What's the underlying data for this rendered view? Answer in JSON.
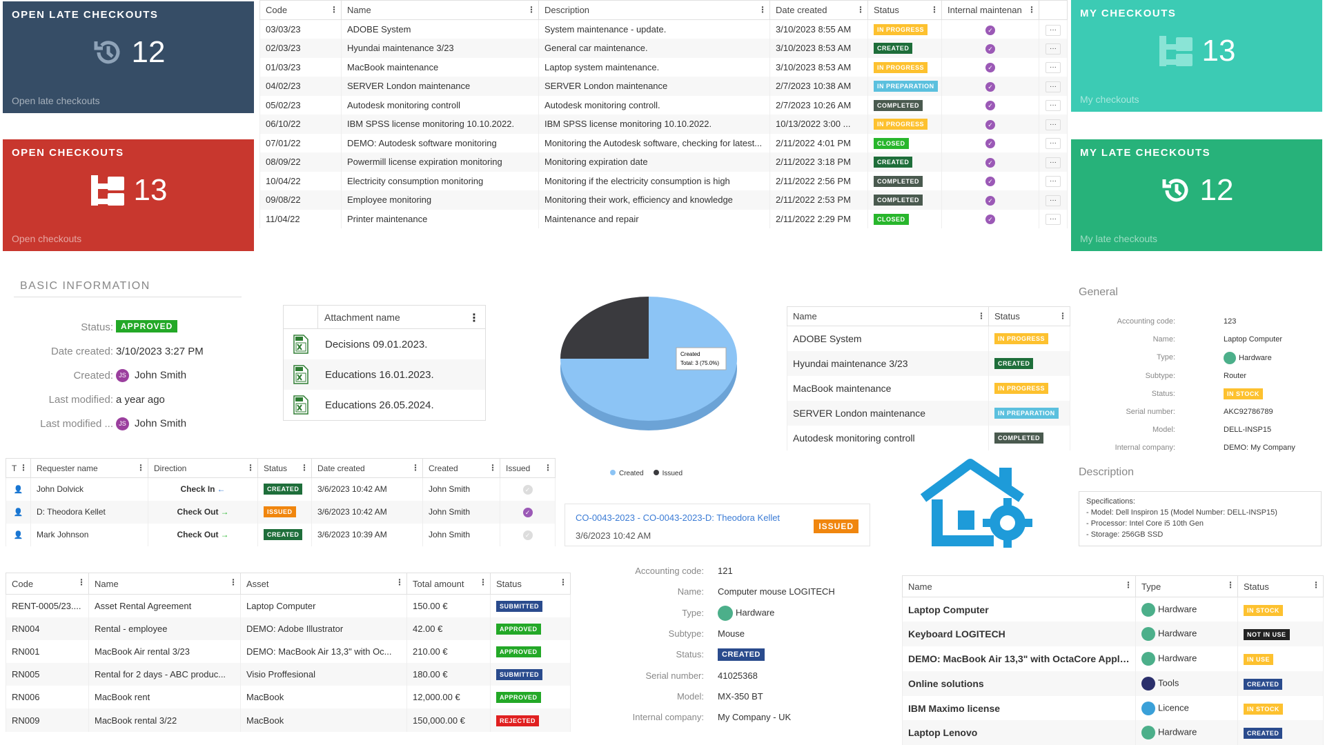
{
  "tiles": {
    "open_late": {
      "title": "OPEN LATE CHECKOUTS",
      "count": "12",
      "footer": "Open late checkouts",
      "color": "#364d66",
      "icon": "history-icon"
    },
    "open": {
      "title": "OPEN CHECKOUTS",
      "count": "13",
      "footer": "Open checkouts",
      "color": "#c8372e",
      "icon": "checkout-tree-icon"
    },
    "my": {
      "title": "MY CHECKOUTS",
      "count": "13",
      "footer": "My checkouts",
      "color": "#3ccbb4",
      "icon": "checkout-tree-icon"
    },
    "my_late": {
      "title": "MY LATE CHECKOUTS",
      "count": "12",
      "footer": "My late checkouts",
      "color": "#27b27a",
      "icon": "history-icon"
    }
  },
  "main_table": {
    "headers": [
      "Code",
      "Name",
      "Description",
      "Date created",
      "Status",
      "Internal maintenan"
    ],
    "rows": [
      {
        "code": "03/03/23",
        "name": "ADOBE System",
        "desc": "System maintenance - update.",
        "date": "3/10/2023 8:55 AM",
        "status": "IN PROGRESS",
        "cls": "b-prog"
      },
      {
        "code": "02/03/23",
        "name": "Hyundai maintenance 3/23",
        "desc": "General car maintenance.",
        "date": "3/10/2023 8:53 AM",
        "status": "CREATED",
        "cls": "b-created"
      },
      {
        "code": "01/03/23",
        "name": "MacBook maintenance",
        "desc": "Laptop system maintenance.",
        "date": "3/10/2023 8:53 AM",
        "status": "IN PROGRESS",
        "cls": "b-prog"
      },
      {
        "code": "04/02/23",
        "name": "SERVER London maintenance",
        "desc": "SERVER London maintenance",
        "date": "2/7/2023 10:38 AM",
        "status": "IN PREPARATION",
        "cls": "b-prep"
      },
      {
        "code": "05/02/23",
        "name": "Autodesk monitoring controll",
        "desc": "Autodesk monitoring controll.",
        "date": "2/7/2023 10:26 AM",
        "status": "COMPLETED",
        "cls": "b-completed"
      },
      {
        "code": "06/10/22",
        "name": "IBM SPSS license monitoring 10.10.2022.",
        "desc": "IBM SPSS license monitoring 10.10.2022.",
        "date": "10/13/2022 3:00 ...",
        "status": "IN PROGRESS",
        "cls": "b-prog"
      },
      {
        "code": "07/01/22",
        "name": "DEMO: Autodesk software monitoring",
        "desc": "Monitoring the Autodesk software, checking for latest...",
        "date": "2/11/2022 4:01 PM",
        "status": "CLOSED",
        "cls": "b-closed"
      },
      {
        "code": "08/09/22",
        "name": "Powermill license expiration monitoring",
        "desc": "Monitoring expiration date",
        "date": "2/11/2022 3:18 PM",
        "status": "CREATED",
        "cls": "b-created"
      },
      {
        "code": "10/04/22",
        "name": "Electricity consumption monitoring",
        "desc": "Monitoring if the electricity consumption is high",
        "date": "2/11/2022 2:56 PM",
        "status": "COMPLETED",
        "cls": "b-completed"
      },
      {
        "code": "09/08/22",
        "name": "Employee monitoring",
        "desc": "Monitoring their work, efficiency and knowledge",
        "date": "2/11/2022 2:53 PM",
        "status": "COMPLETED",
        "cls": "b-completed"
      },
      {
        "code": "11/04/22",
        "name": "Printer maintenance",
        "desc": "Maintenance and repair",
        "date": "2/11/2022 2:29 PM",
        "status": "CLOSED",
        "cls": "b-closed"
      }
    ],
    "more": "···"
  },
  "basic": {
    "title": "BASIC INFORMATION",
    "status_label": "Status:",
    "status": "APPROVED",
    "date_label": "Date created:",
    "date": "3/10/2023 3:27 PM",
    "created_label": "Created:",
    "created": "John Smith",
    "initials": "JS",
    "lastmod_label": "Last modified:",
    "lastmod": "a year ago",
    "lastmodby_label": "Last modified ...",
    "lastmodby": "John Smith"
  },
  "attachments": {
    "header": "Attachment name",
    "rows": [
      "Decisions 09.01.2023.",
      "Educations 16.01.2023.",
      "Educations 26.05.2024."
    ]
  },
  "chart_data": {
    "type": "pie",
    "categories": [
      "Created",
      "Issued"
    ],
    "values": [
      3,
      1
    ],
    "colors": [
      "#8cc4f5",
      "#3a3a3e"
    ],
    "tooltip": "Created",
    "tooltip_value": "Total: 3 (75.0%)"
  },
  "small_status": {
    "headers": [
      "Name",
      "Status"
    ],
    "rows": [
      {
        "name": "ADOBE System",
        "status": "IN PROGRESS",
        "cls": "b-prog"
      },
      {
        "name": "Hyundai maintenance 3/23",
        "status": "CREATED",
        "cls": "b-created"
      },
      {
        "name": "MacBook maintenance",
        "status": "IN PROGRESS",
        "cls": "b-prog"
      },
      {
        "name": "SERVER London maintenance",
        "status": "IN PREPARATION",
        "cls": "b-prep"
      },
      {
        "name": "Autodesk monitoring controll",
        "status": "COMPLETED",
        "cls": "b-completed"
      }
    ]
  },
  "general": {
    "title": "General",
    "fields": [
      {
        "k": "Accounting code:",
        "v": "123"
      },
      {
        "k": "Name:",
        "v": "Laptop Computer"
      },
      {
        "k": "Type:",
        "v": "Hardware"
      },
      {
        "k": "Subtype:",
        "v": "Router"
      },
      {
        "k": "Status:",
        "v": "IN STOCK"
      },
      {
        "k": "Serial number:",
        "v": "AKC92786789"
      },
      {
        "k": "Model:",
        "v": "DELL-INSP15"
      },
      {
        "k": "Internal company:",
        "v": "DEMO: My Company"
      }
    ],
    "desc_title": "Description",
    "desc": [
      "Specifications:",
      "- Model: Dell Inspiron 15 (Model Number: DELL-INSP15)",
      "- Processor: Intel Core i5 10th Gen",
      "- Storage: 256GB SSD"
    ]
  },
  "requests": {
    "headers": [
      "T",
      "Requester name",
      "Direction",
      "Status",
      "Date created",
      "Created",
      "Issued"
    ],
    "rows": [
      {
        "name": "John Dolvick",
        "dir": "Check In",
        "arrow": "←",
        "status": "CREATED",
        "cls": "b-created",
        "date": "3/6/2023 10:42 AM",
        "by": "John Smith",
        "issued": false
      },
      {
        "name": "D: Theodora Kellet",
        "dir": "Check Out",
        "arrow": "→",
        "status": "ISSUED",
        "cls": "b-issued",
        "date": "3/6/2023 10:42 AM",
        "by": "John Smith",
        "issued": true
      },
      {
        "name": "Mark Johnson",
        "dir": "Check Out",
        "arrow": "→",
        "status": "CREATED",
        "cls": "b-created",
        "date": "3/6/2023 10:39 AM",
        "by": "John Smith",
        "issued": false
      }
    ]
  },
  "legend": {
    "created": "Created",
    "issued": "Issued"
  },
  "checkout_card": {
    "code": "CO-0043-2023",
    "title": "CO-0043-2023-D: Theodora Kellet",
    "date": "3/6/2023 10:42 AM",
    "status": "ISSUED",
    "sep": " - "
  },
  "rentals": {
    "headers": [
      "Code",
      "Name",
      "Asset",
      "Total amount",
      "Status"
    ],
    "rows": [
      {
        "code": "RENT-0005/23....",
        "name": "Asset Rental Agreement",
        "asset": "Laptop Computer",
        "amount": "150.00 €",
        "status": "SUBMITTED",
        "cls": "b-submitted"
      },
      {
        "code": "RN004",
        "name": "Rental - employee",
        "asset": "DEMO: Adobe Illustrator",
        "amount": "42.00 €",
        "status": "APPROVED",
        "cls": "b-approved"
      },
      {
        "code": "RN001",
        "name": "MacBook Air rental 3/23",
        "asset": "DEMO: MacBook Air 13,3\" with Oc...",
        "amount": "210.00 €",
        "status": "APPROVED",
        "cls": "b-approved"
      },
      {
        "code": "RN005",
        "name": "Rental for 2 days - ABC produc...",
        "asset": "Visio Proffesional",
        "amount": "180.00 €",
        "status": "SUBMITTED",
        "cls": "b-submitted"
      },
      {
        "code": "RN006",
        "name": "MacBook rent",
        "asset": "MacBook",
        "amount": "12,000.00 €",
        "status": "APPROVED",
        "cls": "b-approved"
      },
      {
        "code": "RN009",
        "name": "MacBook rental 3/22",
        "asset": "MacBook",
        "amount": "150,000.00 €",
        "status": "REJECTED",
        "cls": "b-rejected"
      }
    ]
  },
  "asset2": {
    "fields": [
      {
        "k": "Accounting code:",
        "v": "121"
      },
      {
        "k": "Name:",
        "v": "Computer mouse LOGITECH"
      },
      {
        "k": "Type:",
        "v": "Hardware"
      },
      {
        "k": "Subtype:",
        "v": "Mouse"
      },
      {
        "k": "Status:",
        "v": "CREATED"
      },
      {
        "k": "Serial number:",
        "v": "41025368"
      },
      {
        "k": "Model:",
        "v": "MX-350 BT"
      },
      {
        "k": "Internal company:",
        "v": "My Company - UK"
      }
    ]
  },
  "assets": {
    "headers": [
      "Name",
      "Type",
      "Status"
    ],
    "rows": [
      {
        "name": "Laptop Computer",
        "type": "Hardware",
        "status": "IN STOCK",
        "cls": "b-stock",
        "icolor": "#4caf8a"
      },
      {
        "name": "Keyboard LOGITECH",
        "type": "Hardware",
        "status": "NOT IN USE",
        "cls": "b-notuse",
        "icolor": "#4caf8a"
      },
      {
        "name": "DEMO: MacBook Air 13,3\" with OctaCore Apple ...",
        "type": "Hardware",
        "status": "IN USE",
        "cls": "b-inuse",
        "icolor": "#4caf8a"
      },
      {
        "name": "Online solutions",
        "type": "Tools",
        "status": "CREATED",
        "cls": "b-submitted",
        "icolor": "#2a2f6b"
      },
      {
        "name": "IBM Maximo license",
        "type": "Licence",
        "status": "IN STOCK",
        "cls": "b-stock",
        "icolor": "#3aa0d8"
      },
      {
        "name": "Laptop Lenovo",
        "type": "Hardware",
        "status": "CREATED",
        "cls": "b-submitted",
        "icolor": "#4caf8a"
      }
    ]
  }
}
